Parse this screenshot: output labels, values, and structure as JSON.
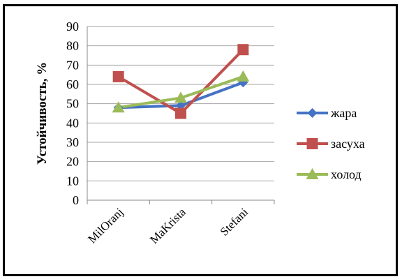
{
  "chart_data": {
    "type": "line",
    "categories": [
      "MilOranj",
      "MaKrista",
      "Stefani"
    ],
    "ylabel": "Устойчивость, %",
    "xlabel": "",
    "ylim": [
      0,
      90
    ],
    "yticks": [
      0,
      10,
      20,
      30,
      40,
      50,
      60,
      70,
      80,
      90
    ],
    "grid": true,
    "legend_position": "right",
    "series": [
      {
        "name": "жара",
        "values": [
          48,
          49,
          61
        ],
        "color": "#4472C4",
        "marker": "diamond"
      },
      {
        "name": "засуха",
        "values": [
          64,
          45,
          78
        ],
        "color": "#C0504D",
        "marker": "square"
      },
      {
        "name": "холод",
        "values": [
          48,
          53,
          64
        ],
        "color": "#9BBB59",
        "marker": "triangle"
      }
    ]
  }
}
